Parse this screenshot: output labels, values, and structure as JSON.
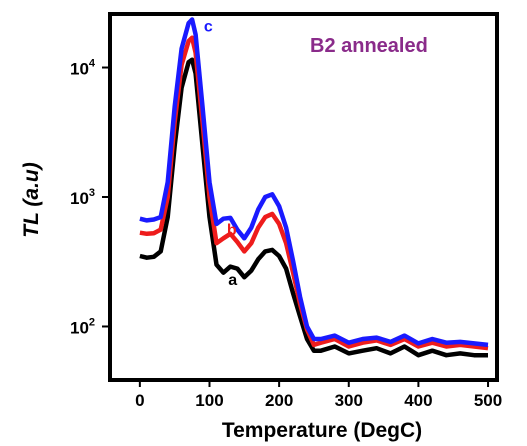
{
  "chart_data": {
    "type": "line",
    "title": "B2 annealed",
    "xlabel": "Temperature (DegC)",
    "ylabel": "TL (a.u)",
    "xlim": [
      -40,
      510
    ],
    "ylim": [
      40,
      25000
    ],
    "yscale": "log",
    "x_ticks": [
      0,
      100,
      200,
      300,
      400,
      500
    ],
    "x_tick_labels": [
      "0",
      "100",
      "200",
      "300",
      "400",
      "500"
    ],
    "y_ticks": [
      100,
      1000,
      10000
    ],
    "y_tick_labels": [
      {
        "base": "10",
        "exp": "2"
      },
      {
        "base": "10",
        "exp": "3"
      },
      {
        "base": "10",
        "exp": "4"
      }
    ],
    "grid": false,
    "legend": "none",
    "series": [
      {
        "label": "a",
        "color": "#000000",
        "x": [
          0,
          10,
          20,
          30,
          40,
          50,
          60,
          70,
          75,
          80,
          90,
          100,
          110,
          120,
          130,
          140,
          150,
          160,
          170,
          180,
          190,
          200,
          210,
          220,
          230,
          240,
          250,
          260,
          280,
          300,
          320,
          340,
          360,
          380,
          400,
          420,
          440,
          460,
          480,
          500
        ],
        "y": [
          350,
          340,
          345,
          380,
          700,
          2500,
          7000,
          11000,
          11500,
          9000,
          2500,
          700,
          300,
          260,
          290,
          280,
          240,
          270,
          330,
          380,
          390,
          350,
          280,
          180,
          120,
          80,
          65,
          65,
          70,
          62,
          65,
          68,
          62,
          70,
          60,
          65,
          60,
          62,
          60,
          60
        ]
      },
      {
        "label": "b",
        "color": "#ee1c1c",
        "x": [
          0,
          10,
          20,
          30,
          40,
          50,
          60,
          70,
          75,
          80,
          90,
          100,
          110,
          120,
          130,
          140,
          150,
          160,
          170,
          180,
          190,
          200,
          210,
          220,
          230,
          240,
          250,
          260,
          280,
          300,
          320,
          340,
          360,
          380,
          400,
          420,
          440,
          460,
          480,
          500
        ],
        "y": [
          530,
          520,
          525,
          560,
          1000,
          3800,
          10500,
          16000,
          17000,
          13000,
          3800,
          1000,
          440,
          480,
          520,
          450,
          380,
          440,
          580,
          700,
          740,
          620,
          440,
          260,
          150,
          95,
          72,
          75,
          80,
          70,
          75,
          78,
          72,
          80,
          70,
          75,
          70,
          72,
          70,
          68
        ]
      },
      {
        "label": "c",
        "color": "#1a1aff",
        "x": [
          0,
          10,
          20,
          30,
          40,
          50,
          60,
          70,
          75,
          80,
          90,
          100,
          110,
          120,
          130,
          140,
          150,
          160,
          170,
          180,
          190,
          200,
          210,
          220,
          230,
          240,
          250,
          260,
          280,
          300,
          320,
          340,
          360,
          380,
          400,
          420,
          440,
          460,
          480,
          500
        ],
        "y": [
          680,
          660,
          670,
          700,
          1300,
          5000,
          14000,
          22000,
          23500,
          18000,
          5000,
          1300,
          620,
          680,
          690,
          560,
          480,
          580,
          800,
          1000,
          1050,
          850,
          580,
          320,
          170,
          100,
          80,
          80,
          85,
          75,
          80,
          82,
          76,
          85,
          74,
          80,
          75,
          76,
          74,
          72
        ]
      }
    ],
    "annotations": [
      {
        "text": "c",
        "x": 92,
        "y": 19000,
        "color": "#1a1aff"
      },
      {
        "text": "b",
        "x": 125,
        "y": 510,
        "color": "#ee1c1c"
      },
      {
        "text": "a",
        "x": 127,
        "y": 210,
        "color": "#000000"
      }
    ],
    "title_color": "#8a2b8a"
  }
}
